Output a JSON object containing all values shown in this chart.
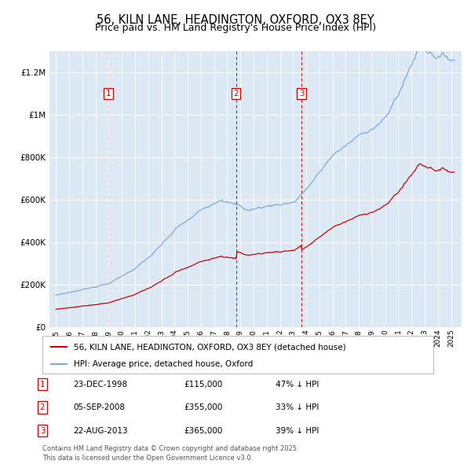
{
  "title": "56, KILN LANE, HEADINGTON, OXFORD, OX3 8EY",
  "subtitle": "Price paid vs. HM Land Registry's House Price Index (HPI)",
  "title_fontsize": 10.5,
  "subtitle_fontsize": 9,
  "plot_bg_color": "#dce9f5",
  "fig_bg_color": "#ffffff",
  "ylim": [
    0,
    1300000
  ],
  "yticks": [
    0,
    200000,
    400000,
    600000,
    800000,
    1000000,
    1200000
  ],
  "ytick_labels": [
    "£0",
    "£200K",
    "£400K",
    "£600K",
    "£800K",
    "£1M",
    "£1.2M"
  ],
  "sales": [
    {
      "label": "1",
      "date": "23-DEC-1998",
      "year": 1998.97,
      "price": 115000,
      "pct": "47% ↓ HPI"
    },
    {
      "label": "2",
      "date": "05-SEP-2008",
      "year": 2008.68,
      "price": 355000,
      "pct": "33% ↓ HPI"
    },
    {
      "label": "3",
      "date": "22-AUG-2013",
      "year": 2013.64,
      "price": 365000,
      "pct": "39% ↓ HPI"
    }
  ],
  "legend_house": "56, KILN LANE, HEADINGTON, OXFORD, OX3 8EY (detached house)",
  "legend_hpi": "HPI: Average price, detached house, Oxford",
  "footnote": "Contains HM Land Registry data © Crown copyright and database right 2025.\nThis data is licensed under the Open Government Licence v3.0.",
  "line_color_red": "#cc0000",
  "line_color_blue": "#7aaadd",
  "dashed_color": "#cc0000",
  "xlim": [
    1994.5,
    2025.8
  ],
  "xticks": [
    1995,
    1996,
    1997,
    1998,
    1999,
    2000,
    2001,
    2002,
    2003,
    2004,
    2005,
    2006,
    2007,
    2008,
    2009,
    2010,
    2011,
    2012,
    2013,
    2014,
    2015,
    2016,
    2017,
    2018,
    2019,
    2020,
    2021,
    2022,
    2023,
    2024,
    2025
  ]
}
